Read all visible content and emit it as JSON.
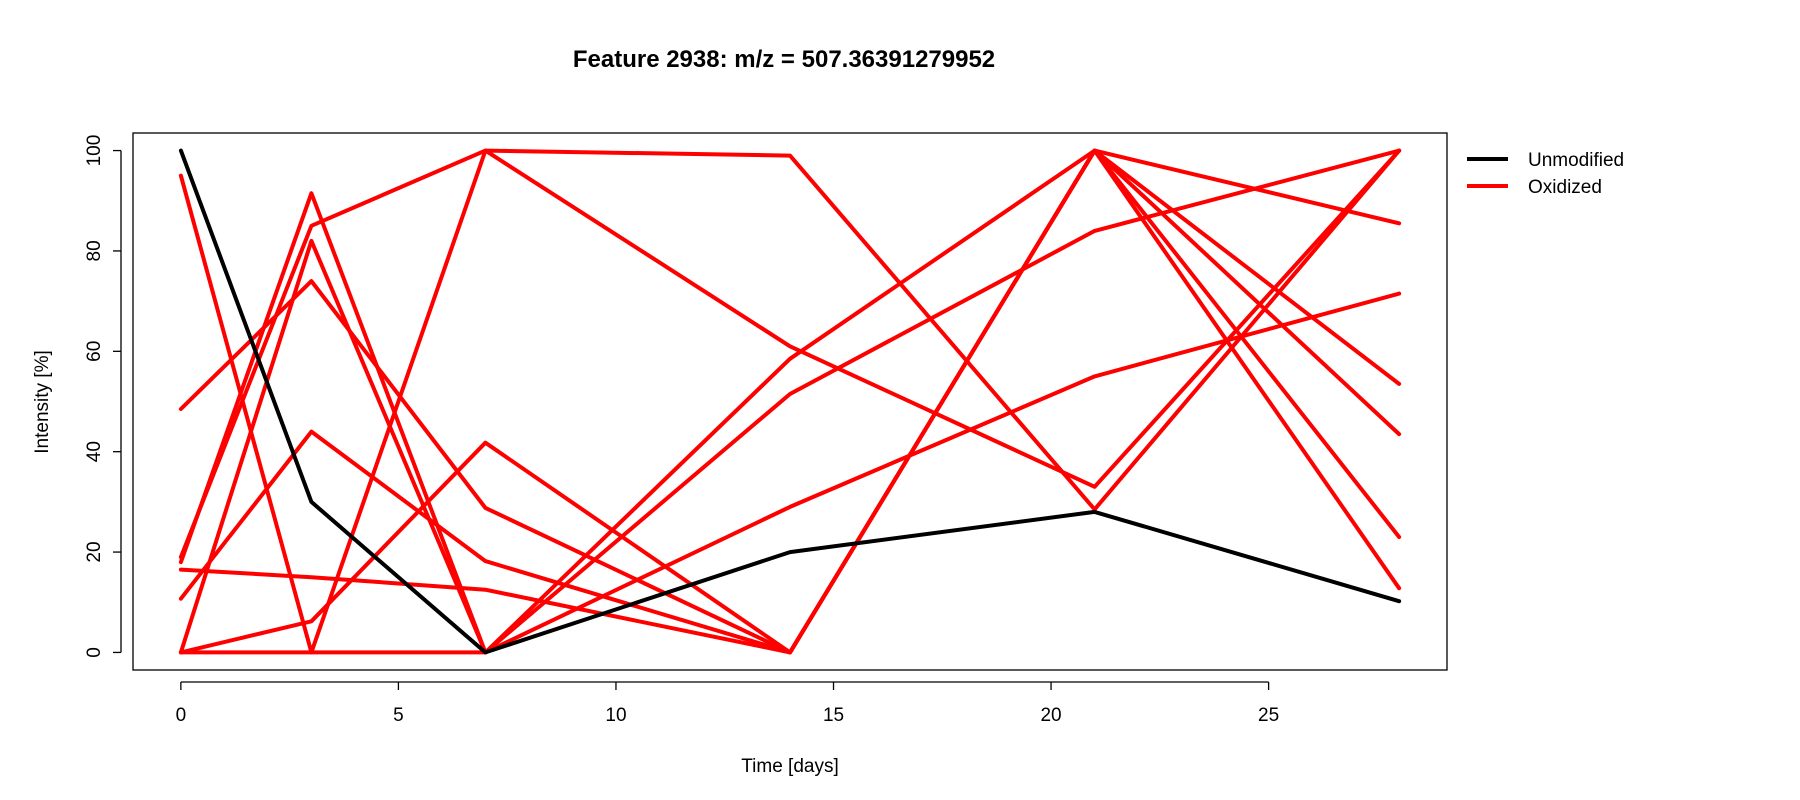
{
  "chart_data": {
    "type": "line",
    "title": "Feature 2938: m/z = 507.36391279952",
    "xlabel": "Time [days]",
    "ylabel": "Intensity [%]",
    "xlim": [
      -1.1,
      29.1
    ],
    "ylim": [
      -3.5,
      103.5
    ],
    "xticks": [
      0,
      5,
      10,
      15,
      20,
      25
    ],
    "yticks": [
      0,
      20,
      40,
      60,
      80,
      100
    ],
    "grid": false,
    "legend_position": "top-right, outside plot",
    "legend": [
      {
        "label": "Unmodified",
        "color": "#000000"
      },
      {
        "label": "Oxidized",
        "color": "#ff0000"
      }
    ],
    "x": [
      0,
      3,
      7,
      14,
      21,
      28
    ],
    "series": [
      {
        "group": "Unmodified",
        "color": "#000000",
        "values": [
          100,
          30,
          0,
          20,
          28,
          10.2
        ]
      },
      {
        "group": "Oxidized",
        "color": "#ff0000",
        "values": [
          95,
          0,
          100,
          99,
          28.5,
          100
        ]
      },
      {
        "group": "Oxidized",
        "color": "#ff0000",
        "values": [
          19,
          85,
          100,
          61,
          33,
          100
        ]
      },
      {
        "group": "Oxidized",
        "color": "#ff0000",
        "values": [
          18,
          91.5,
          0,
          58.5,
          100,
          43.5
        ]
      },
      {
        "group": "Oxidized",
        "color": "#ff0000",
        "values": [
          48.5,
          74,
          28.8,
          0,
          100,
          53.5
        ]
      },
      {
        "group": "Oxidized",
        "color": "#ff0000",
        "values": [
          10.7,
          44,
          18.2,
          0,
          100,
          23
        ]
      },
      {
        "group": "Oxidized",
        "color": "#ff0000",
        "values": [
          0,
          82,
          0,
          51.5,
          84,
          100
        ]
      },
      {
        "group": "Oxidized",
        "color": "#ff0000",
        "values": [
          16.5,
          15,
          12.5,
          0,
          100,
          12.8
        ]
      },
      {
        "group": "Oxidized",
        "color": "#ff0000",
        "values": [
          0,
          6.2,
          41.8,
          0,
          100,
          85.5
        ]
      },
      {
        "group": "Oxidized",
        "color": "#ff0000",
        "values": [
          0,
          0,
          0,
          29,
          55,
          71.5
        ]
      }
    ]
  }
}
